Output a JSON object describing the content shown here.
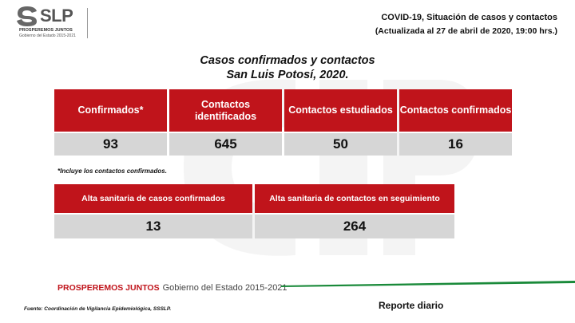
{
  "header": {
    "logo_word": "SLP",
    "logo_line1": "PROSPEREMOS JUNTOS",
    "logo_line2": "Gobierno del Estado 2015-2021",
    "title": "COVID-19, Situación de casos y contactos",
    "subtitle": "(Actualizada al 27 de abril de 2020, 19:00 hrs.)"
  },
  "main": {
    "title_line1": "Casos confirmados y contactos",
    "title_line2": "San Luis Potosí, 2020."
  },
  "summary_table": {
    "headers": [
      "Confirmados*",
      "Contactos identificados",
      "Contactos estudiados",
      "Contactos confirmados"
    ],
    "values": [
      "93",
      "645",
      "50",
      "16"
    ]
  },
  "note": "*Incluye los contactos confirmados.",
  "alta_table": {
    "headers": [
      "Alta sanitaria de casos confirmados",
      "Alta sanitaria de contactos en seguimiento"
    ],
    "values": [
      "13",
      "264"
    ]
  },
  "footer": {
    "brand_bold": "PROSPEREMOS JUNTOS",
    "brand_rest": "Gobierno del Estado 2015-2021",
    "source": "Fuente: Coordinación de Vigilancia Epidemiológica, SSSLP.",
    "report": "Reporte diario"
  },
  "colors": {
    "accent_red": "#c0141b",
    "cell_gray": "#d6d6d6",
    "footer_green": "#1a8a3a"
  }
}
